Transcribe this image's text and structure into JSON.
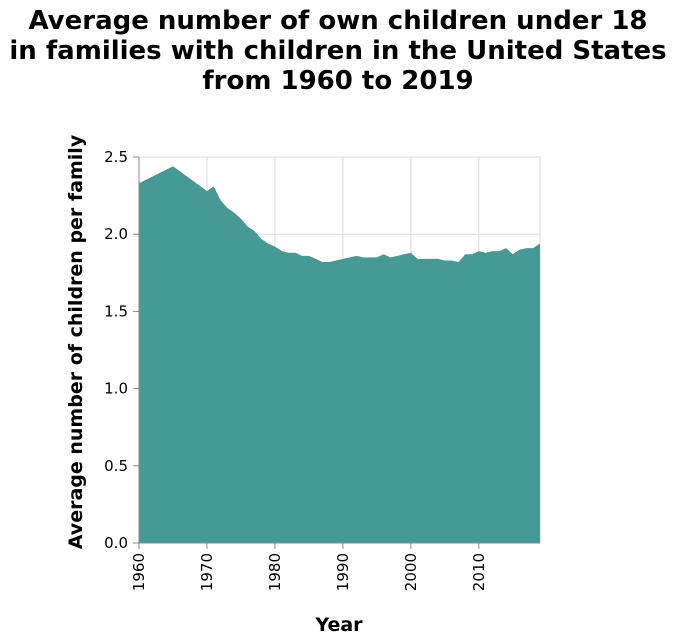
{
  "chart_data": {
    "type": "area",
    "title": [
      "Average number of own children under 18",
      "in families with children in the United States",
      "from 1960 to 2019"
    ],
    "xlabel": "Year",
    "ylabel": "Average number of children per family",
    "xlim": [
      1960,
      2019
    ],
    "ylim": [
      0,
      2.5
    ],
    "x_ticks": [
      "1960",
      "1970",
      "1980",
      "1990",
      "2000",
      "2010"
    ],
    "y_ticks": [
      "0.0",
      "0.5",
      "1.0",
      "1.5",
      "2.0",
      "2.5"
    ],
    "grid": true,
    "color": "#469a96",
    "x": [
      1960,
      1965,
      1970,
      1971,
      1972,
      1973,
      1974,
      1975,
      1976,
      1977,
      1978,
      1979,
      1980,
      1981,
      1982,
      1983,
      1984,
      1985,
      1986,
      1987,
      1988,
      1989,
      1990,
      1991,
      1992,
      1993,
      1994,
      1995,
      1996,
      1997,
      1998,
      1999,
      2000,
      2001,
      2002,
      2003,
      2004,
      2005,
      2006,
      2007,
      2008,
      2009,
      2010,
      2011,
      2012,
      2013,
      2014,
      2015,
      2016,
      2017,
      2018,
      2019
    ],
    "values": [
      2.33,
      2.44,
      2.28,
      2.31,
      2.22,
      2.17,
      2.14,
      2.1,
      2.05,
      2.02,
      1.97,
      1.94,
      1.92,
      1.89,
      1.88,
      1.88,
      1.86,
      1.86,
      1.84,
      1.82,
      1.82,
      1.83,
      1.84,
      1.85,
      1.86,
      1.85,
      1.85,
      1.85,
      1.87,
      1.85,
      1.86,
      1.87,
      1.88,
      1.84,
      1.84,
      1.84,
      1.84,
      1.83,
      1.83,
      1.82,
      1.87,
      1.87,
      1.89,
      1.88,
      1.89,
      1.89,
      1.91,
      1.87,
      1.9,
      1.91,
      1.91,
      1.94
    ]
  }
}
